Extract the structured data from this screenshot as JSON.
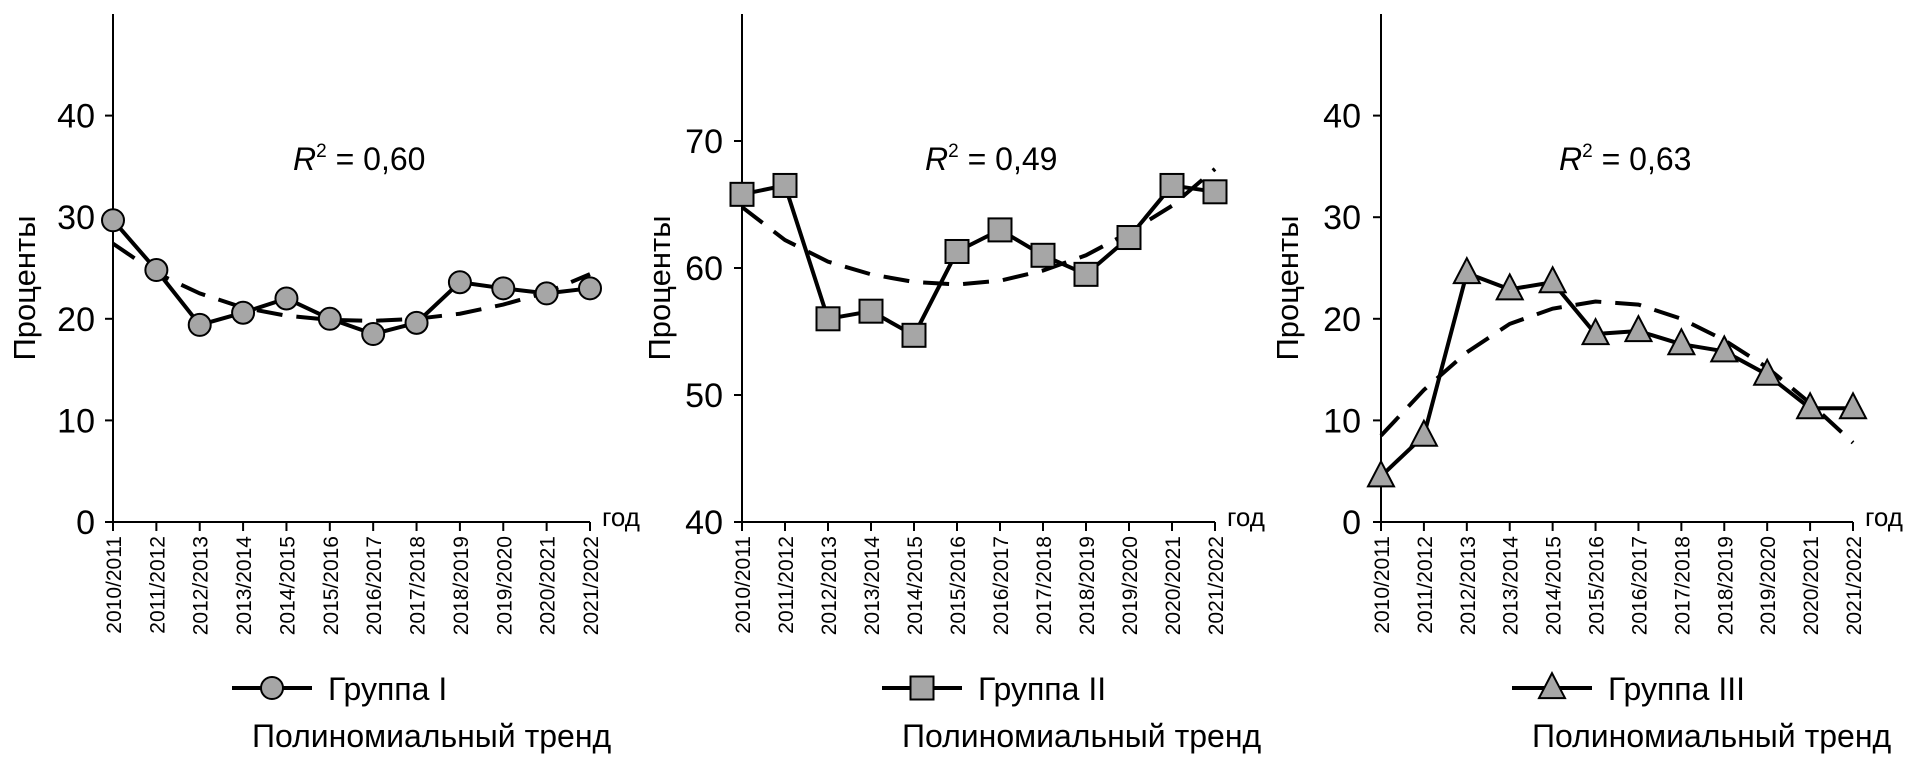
{
  "chart_data": [
    {
      "type": "line",
      "title": "",
      "annotation_var": "R",
      "annotation_sup": "2",
      "annotation_value": " = 0,60",
      "ylabel": "Проценты",
      "xlabel": "год",
      "ylim": [
        0,
        50
      ],
      "yticks": [
        "0",
        "10",
        "20",
        "30",
        "40"
      ],
      "categories": [
        "2010/2011",
        "2011/2012",
        "2012/2013",
        "2013/2014",
        "2014/2015",
        "2015/2016",
        "2016/2017",
        "2017/2018",
        "2018/2019",
        "2019/2020",
        "2020/2021",
        "2021/2022"
      ],
      "marker": "circle",
      "legend": {
        "series": "Группа I",
        "trend": "Полиномиальный тренд"
      },
      "series": [
        {
          "name": "Группа I",
          "values": [
            29.7,
            24.8,
            19.4,
            20.6,
            22.0,
            20.0,
            18.5,
            19.6,
            23.6,
            23.0,
            22.5,
            23.0
          ]
        },
        {
          "name": "Полиномиальный тренд",
          "values": [
            27.4,
            24.5,
            22.5,
            21.1,
            20.3,
            19.9,
            19.8,
            20.0,
            20.5,
            21.4,
            22.6,
            24.4
          ]
        }
      ]
    },
    {
      "type": "line",
      "title": "",
      "annotation_var": "R",
      "annotation_sup": "2",
      "annotation_value": " = 0,49",
      "ylabel": "Проценты",
      "xlabel": "год",
      "ylim": [
        40,
        80
      ],
      "yticks": [
        "40",
        "50",
        "60",
        "70"
      ],
      "categories": [
        "2010/2011",
        "2011/2012",
        "2012/2013",
        "2013/2014",
        "2014/2015",
        "2015/2016",
        "2016/2017",
        "2017/2018",
        "2018/2019",
        "2019/2020",
        "2020/2021",
        "2021/2022"
      ],
      "marker": "square",
      "legend": {
        "series": "Группа II",
        "trend": "Полиномиальный тренд"
      },
      "series": [
        {
          "name": "Группа II",
          "values": [
            65.8,
            66.5,
            56.0,
            56.6,
            54.7,
            61.3,
            63.0,
            61.0,
            59.5,
            62.4,
            66.5,
            66.0
          ]
        },
        {
          "name": "Полиномиальный тренд",
          "values": [
            64.8,
            62.2,
            60.5,
            59.5,
            58.9,
            58.7,
            59.0,
            59.8,
            61.0,
            62.8,
            64.9,
            67.8
          ]
        }
      ]
    },
    {
      "type": "line",
      "title": "",
      "annotation_var": "R",
      "annotation_sup": "2",
      "annotation_value": " = 0,63",
      "ylabel": "Проценты",
      "xlabel": "год",
      "ylim": [
        0,
        50
      ],
      "yticks": [
        "0",
        "10",
        "20",
        "30",
        "40"
      ],
      "categories": [
        "2010/2011",
        "2011/2012",
        "2012/2013",
        "2013/2014",
        "2014/2015",
        "2015/2016",
        "2016/2017",
        "2017/2018",
        "2018/2019",
        "2019/2020",
        "2020/2021",
        "2021/2022"
      ],
      "marker": "triangle",
      "legend": {
        "series": "Группа III",
        "trend": "Полиномиальный тренд"
      },
      "series": [
        {
          "name": "Группа III",
          "values": [
            4.5,
            8.5,
            24.5,
            22.9,
            23.6,
            18.5,
            18.8,
            17.5,
            16.8,
            14.5,
            11.2,
            11.2
          ]
        },
        {
          "name": "Полиномиальный тренд",
          "values": [
            8.5,
            13.0,
            16.7,
            19.5,
            21.0,
            21.7,
            21.4,
            20.0,
            17.9,
            15.2,
            11.7,
            7.8
          ]
        }
      ]
    }
  ]
}
